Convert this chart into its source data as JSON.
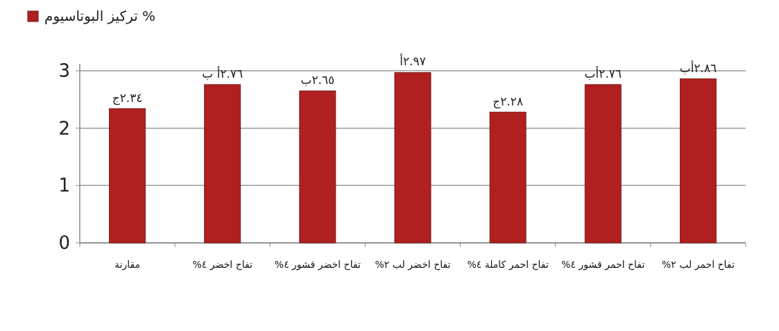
{
  "chart_data": {
    "type": "bar",
    "categories": [
      "مقارنة",
      "تفاح اخضر ٤%",
      "تفاح اخضر قشور ٤%",
      "تفاح اخضر لب ٢%",
      "تفاح احمر كاملة ٤%",
      "تفاح احمر قشور ٤%",
      "تفاح احمر لب ٢%"
    ],
    "series": [
      {
        "name": "تركيز البوتاسيوم %",
        "color": "#b02020",
        "values": [
          2.34,
          2.76,
          2.65,
          2.97,
          2.28,
          2.76,
          2.86
        ],
        "value_labels": [
          "٢.٣٤ج",
          "٢.٧٦أ ب",
          "٢.٦٥ب",
          "٢.٩٧أ",
          "٢.٢٨ج",
          "٢.٧٦أب",
          "٢.٨٦أب"
        ]
      }
    ],
    "ylim": [
      0,
      3
    ],
    "yticks": [
      0,
      1,
      2,
      3
    ],
    "grid": "y",
    "legend": "top left"
  }
}
